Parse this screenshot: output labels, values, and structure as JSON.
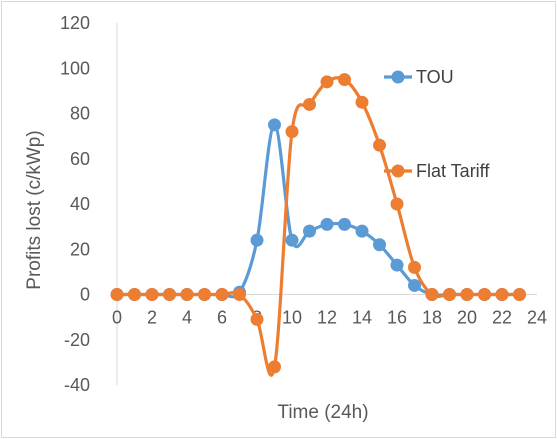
{
  "chart_data": {
    "type": "line",
    "title": "",
    "xlabel": "Time (24h)",
    "ylabel": "Profits lost  (c/kWp)",
    "xlim": [
      0,
      24
    ],
    "ylim": [
      -40,
      120
    ],
    "x_ticks": [
      0,
      2,
      4,
      6,
      8,
      10,
      12,
      14,
      16,
      18,
      20,
      22,
      24
    ],
    "y_ticks": [
      -40,
      -20,
      0,
      20,
      40,
      60,
      80,
      100,
      120
    ],
    "grid": false,
    "legend_position": "right",
    "series": [
      {
        "name": "TOU",
        "color": "#5b9bd5",
        "marker": "circle",
        "smooth": true,
        "x": [
          0,
          1,
          2,
          3,
          4,
          5,
          6,
          7,
          8,
          9,
          10,
          11,
          12,
          13,
          14,
          15,
          16,
          17,
          18,
          19,
          20,
          21,
          22,
          23
        ],
        "y": [
          0,
          0,
          0,
          0,
          0,
          0,
          0,
          1,
          24,
          75,
          24,
          28,
          31,
          31,
          28,
          22,
          13,
          4,
          0,
          0,
          0,
          0,
          0,
          0
        ]
      },
      {
        "name": "Flat Tariff",
        "color": "#ed7d31",
        "marker": "circle",
        "smooth": true,
        "x": [
          0,
          1,
          2,
          3,
          4,
          5,
          6,
          7,
          8,
          9,
          10,
          11,
          12,
          13,
          14,
          15,
          16,
          17,
          18,
          19,
          20,
          21,
          22,
          23
        ],
        "y": [
          0,
          0,
          0,
          0,
          0,
          0,
          0,
          0,
          -11,
          -32,
          72,
          84,
          94,
          95,
          85,
          66,
          40,
          12,
          0,
          0,
          0,
          0,
          0,
          0
        ]
      }
    ]
  }
}
